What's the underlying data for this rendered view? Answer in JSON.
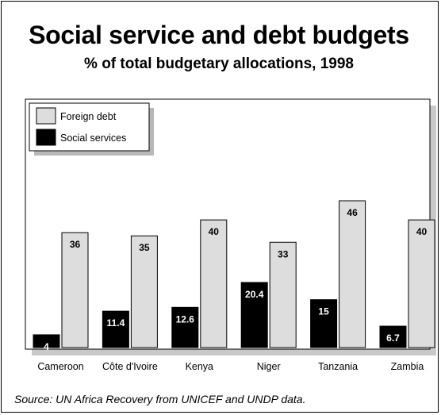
{
  "chart_data": {
    "type": "bar",
    "title": "Social service and debt budgets",
    "subtitle": "% of total budgetary allocations, 1998",
    "categories": [
      "Cameroon",
      "Côte d'Ivoire",
      "Kenya",
      "Niger",
      "Tanzania",
      "Zambia"
    ],
    "series": [
      {
        "name": "Social services",
        "values": [
          4,
          11.4,
          12.6,
          20.4,
          15,
          6.7
        ],
        "color": "#000000",
        "label_color": "#ffffff"
      },
      {
        "name": "Foreign debt",
        "values": [
          36,
          35,
          40,
          33,
          46,
          40
        ],
        "color": "#dddddd",
        "label_color": "#000000"
      }
    ],
    "data_labels": [
      [
        "4",
        "11.4",
        "12.6",
        "20.4",
        "15",
        "6.7"
      ],
      [
        "36",
        "35",
        "40",
        "33",
        "46",
        "40"
      ]
    ],
    "legend_order": [
      "Foreign debt",
      "Social services"
    ],
    "ylim": [
      0,
      50
    ],
    "grid": false,
    "legend_position": "top-left",
    "source": "Source: UN Africa Recovery from UNICEF and UNDP data."
  }
}
